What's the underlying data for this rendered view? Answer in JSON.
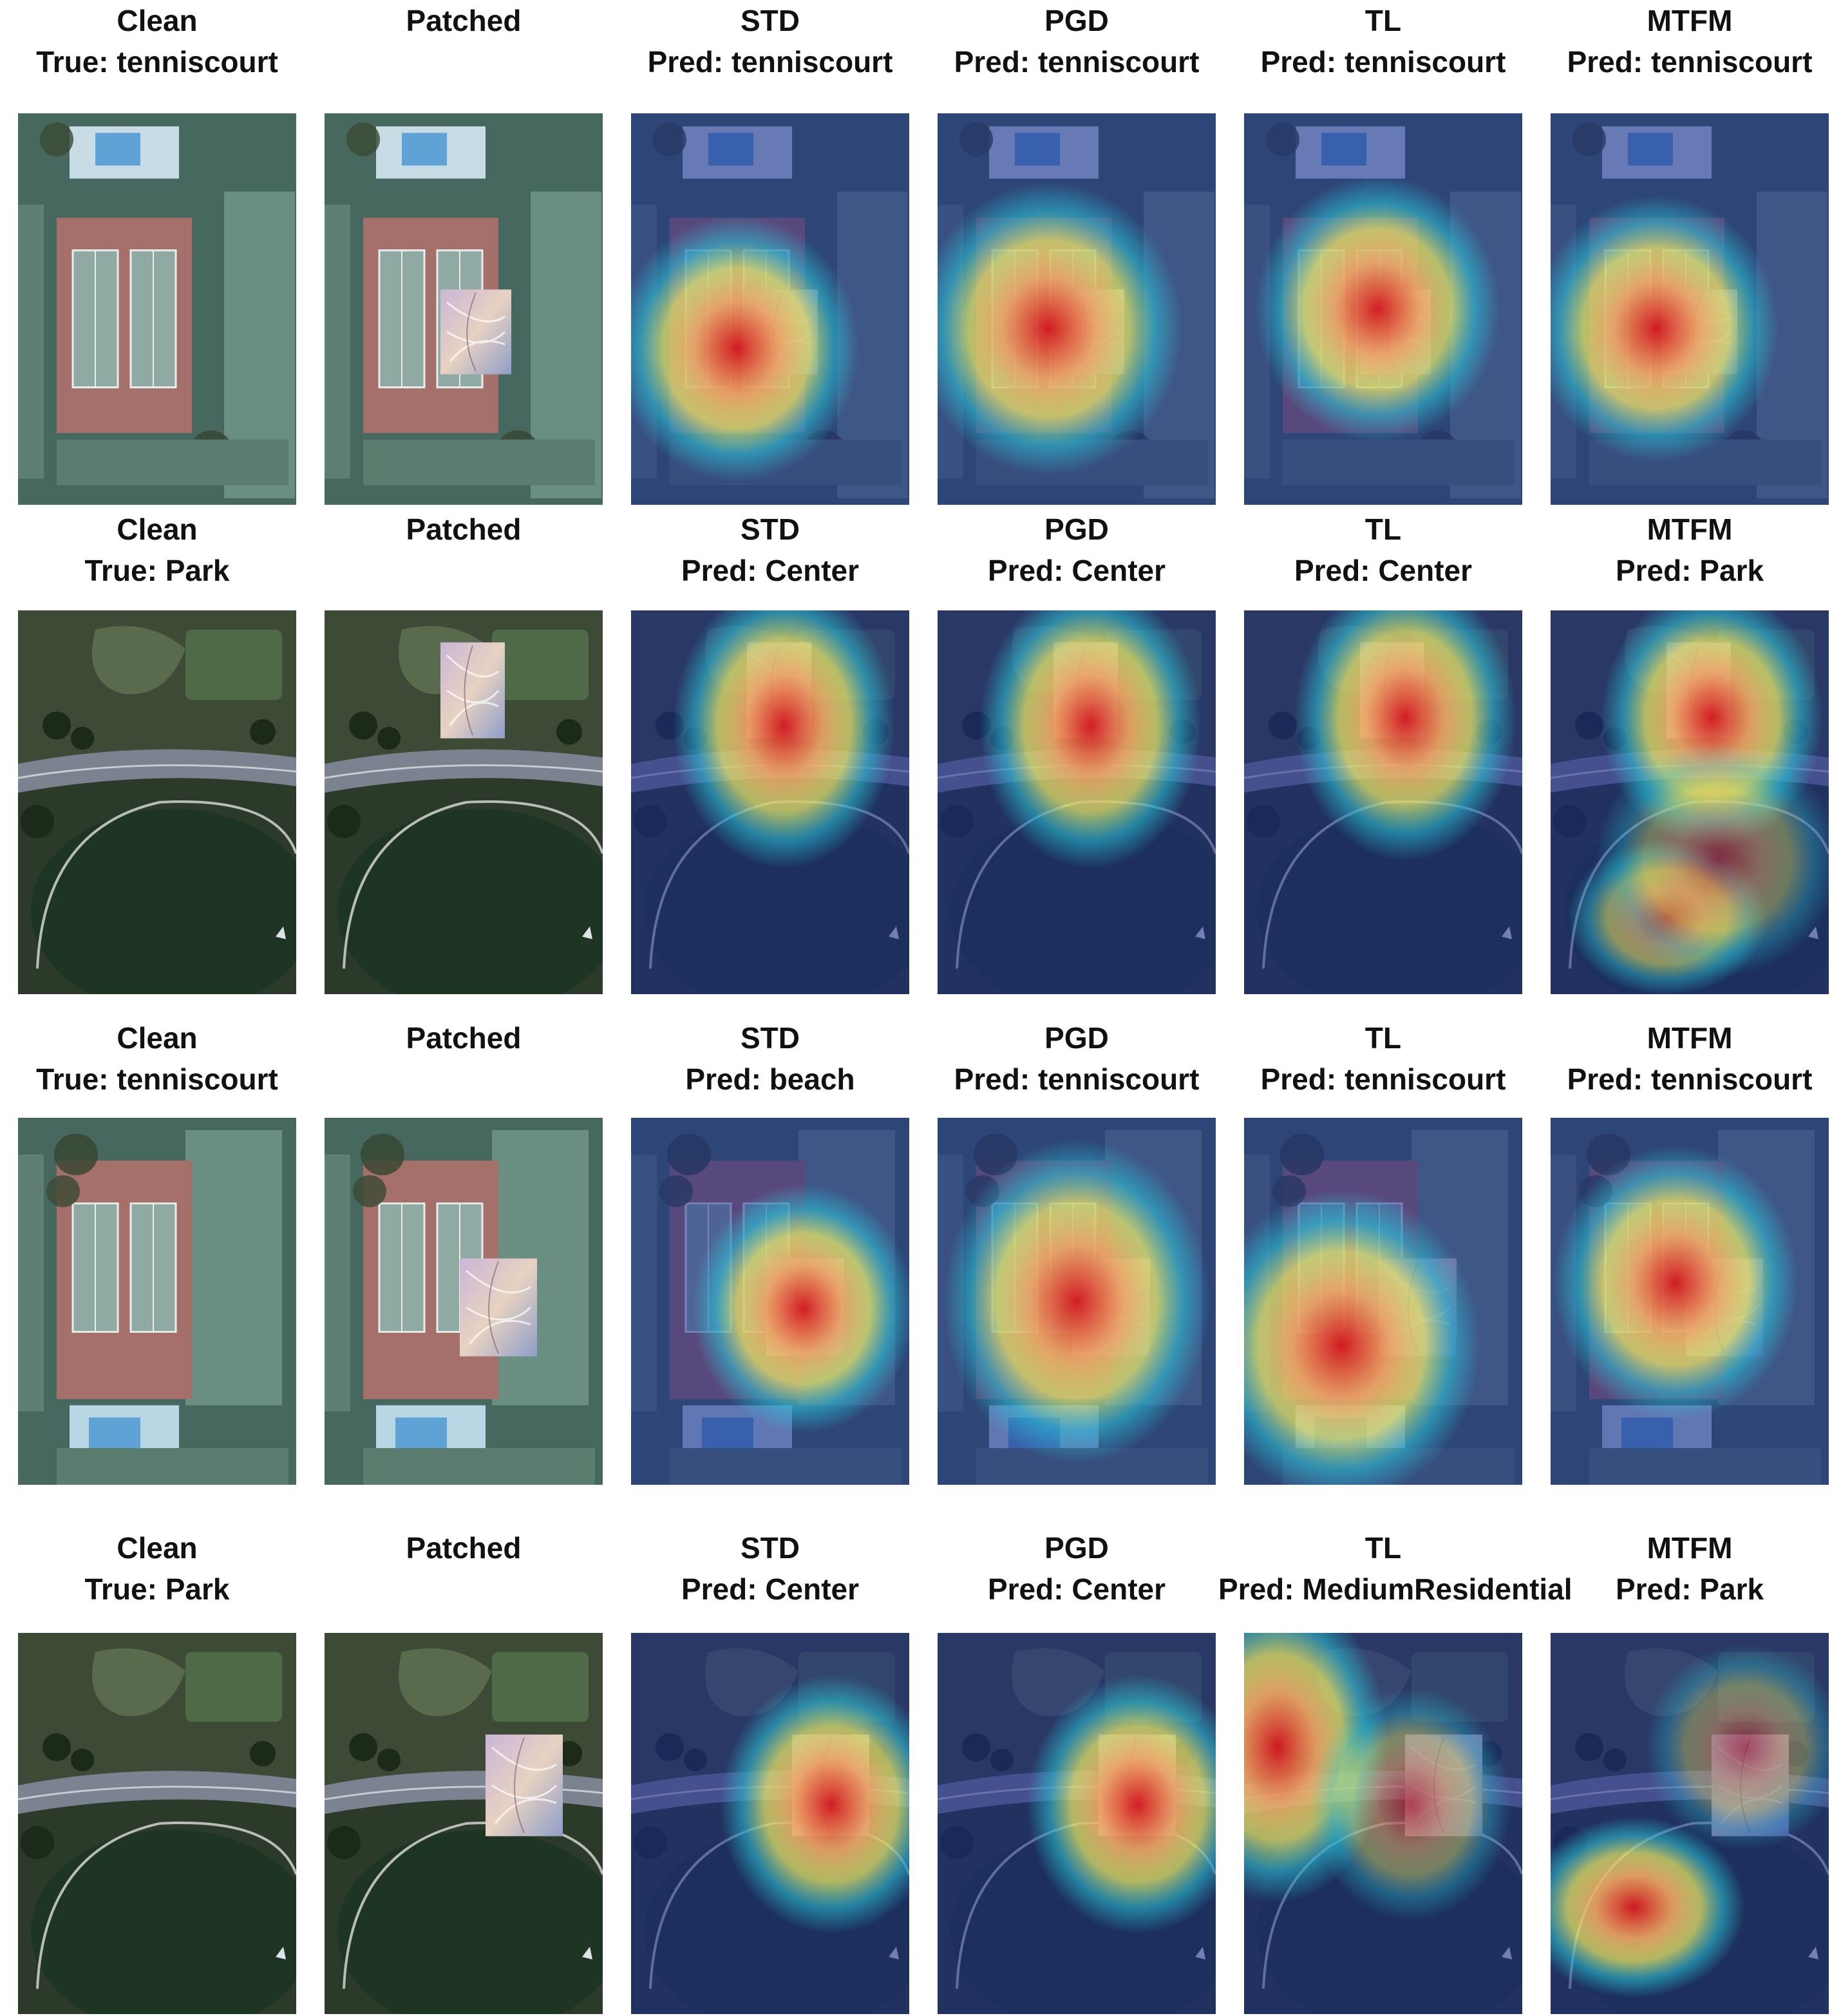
{
  "rows": [
    {
      "true_label": "tenniscourt",
      "scene": "court",
      "panels": [
        {
          "title": "Clean",
          "caption": "True: tenniscourt"
        },
        {
          "title": "Patched",
          "caption": ""
        },
        {
          "title": "STD",
          "caption": "Pred: tenniscourt"
        },
        {
          "title": "PGD",
          "caption": "Pred: tenniscourt"
        },
        {
          "title": "TL",
          "caption": "Pred: tenniscourt"
        },
        {
          "title": "MTFM",
          "caption": "Pred: tenniscourt"
        }
      ]
    },
    {
      "true_label": "Park",
      "scene": "park",
      "panels": [
        {
          "title": "Clean",
          "caption": "True: Park"
        },
        {
          "title": "Patched",
          "caption": ""
        },
        {
          "title": "STD",
          "caption": "Pred: Center"
        },
        {
          "title": "PGD",
          "caption": "Pred: Center"
        },
        {
          "title": "TL",
          "caption": "Pred: Center"
        },
        {
          "title": "MTFM",
          "caption": "Pred: Park"
        }
      ]
    },
    {
      "true_label": "tenniscourt",
      "scene": "court-flipped",
      "panels": [
        {
          "title": "Clean",
          "caption": "True: tenniscourt"
        },
        {
          "title": "Patched",
          "caption": ""
        },
        {
          "title": "STD",
          "caption": "Pred: beach"
        },
        {
          "title": "PGD",
          "caption": "Pred: tenniscourt"
        },
        {
          "title": "TL",
          "caption": "Pred: tenniscourt"
        },
        {
          "title": "MTFM",
          "caption": "Pred: tenniscourt"
        }
      ]
    },
    {
      "true_label": "Park",
      "scene": "park",
      "panels": [
        {
          "title": "Clean",
          "caption": "True: Park"
        },
        {
          "title": "Patched",
          "caption": ""
        },
        {
          "title": "STD",
          "caption": "Pred: Center"
        },
        {
          "title": "PGD",
          "caption": "Pred: Center"
        },
        {
          "title": "TL",
          "caption": "Pred: MediumResidential"
        },
        {
          "title": "MTFM",
          "caption": "Pred: Park"
        }
      ]
    }
  ],
  "colors": {
    "heat_hot": "#d7191c",
    "heat_warm": "#fdae61",
    "heat_mid": "#ffff66",
    "heat_cool": "#2ac6d8",
    "heat_cold": "#1a2a8c"
  }
}
